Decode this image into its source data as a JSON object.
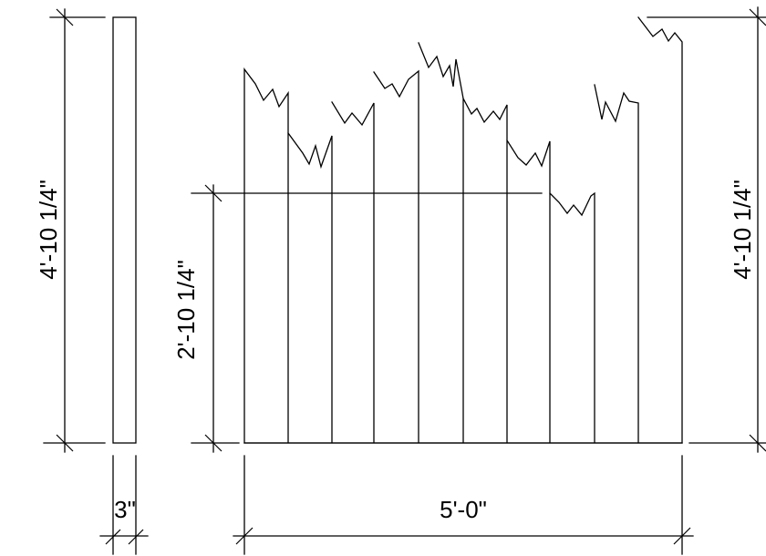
{
  "dimensions": {
    "left_height": "4'-10 1/4\"",
    "board_thickness": "3\"",
    "fence_width": "5'-0\"",
    "mid_height": "2'-10 1/4\"",
    "right_height": "4'-10 1/4\""
  }
}
